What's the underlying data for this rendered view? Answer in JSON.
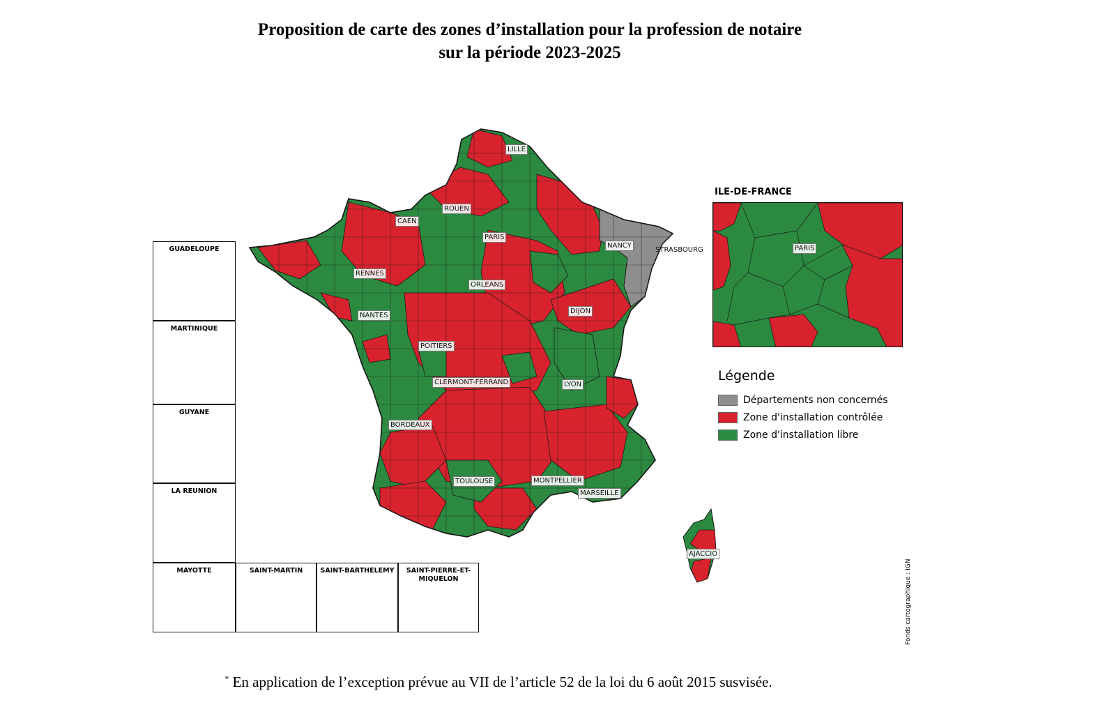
{
  "title": {
    "line1": "Proposition de carte des zones d’installation pour la profession de notaire",
    "line2": "sur la période 2023-2025"
  },
  "colors": {
    "controlled": "#d8232e",
    "free": "#2c8a40",
    "not_concerned": "#8e8e8e",
    "border": "#1a1a1a"
  },
  "cities": {
    "lille": "LILLE",
    "rouen": "ROUEN",
    "caen": "CAEN",
    "paris": "PARIS",
    "nancy": "NANCY",
    "strasbourg": "STRASBOURG",
    "rennes": "RENNES",
    "orleans": "ORLEANS",
    "dijon": "DIJON",
    "nantes": "NANTES",
    "poitiers": "POITIERS",
    "clermont": "CLERMONT-FERRAND",
    "lyon": "LYON",
    "bordeaux": "BORDEAUX",
    "toulouse": "TOULOUSE",
    "montpellier": "MONTPELLIER",
    "marseille": "MARSEILLE",
    "ajaccio": "AJACCIO"
  },
  "insets": {
    "guadeloupe": "GUADELOUPE",
    "martinique": "MARTINIQUE",
    "guyane": "GUYANE",
    "reunion": "LA REUNION",
    "mayotte": "MAYOTTE",
    "saint_martin": "SAINT-MARTIN",
    "saint_barthelemy": "SAINT-BARTHELEMY",
    "spm": "SAINT-PIERRE-ET-MIQUELON"
  },
  "idf": {
    "title": "ILE-DE-FRANCE",
    "city": "PARIS"
  },
  "legend": {
    "title": "Légende",
    "items": [
      {
        "label": "Départements non concernés",
        "color": "#8e8e8e"
      },
      {
        "label": "Zone d'installation contrôlée",
        "color": "#d8232e"
      },
      {
        "label": "Zone d'installation libre",
        "color": "#2c8a40"
      }
    ]
  },
  "source": "Fonds cartographique : IGN",
  "footnote": {
    "mark": "*",
    "text": "En application de l’exception prévue au VII de l’article 52 de la loi du 6 août 2015 susvisée."
  }
}
